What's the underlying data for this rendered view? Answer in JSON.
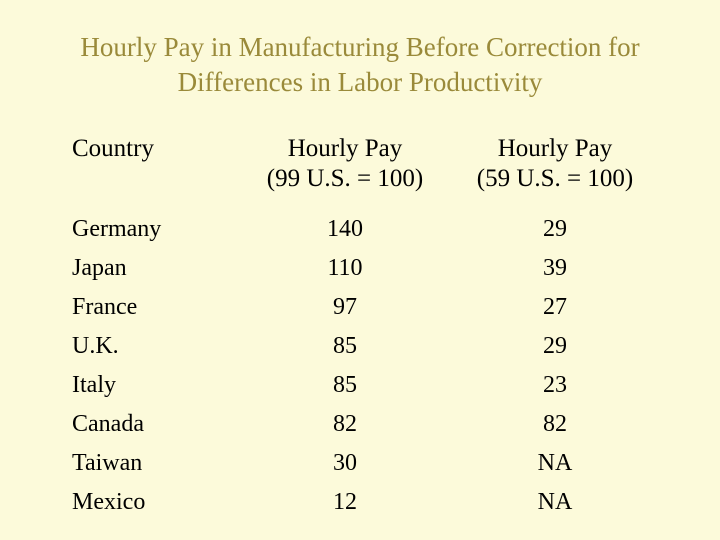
{
  "slide": {
    "title": "Hourly Pay in Manufacturing Before Correction for Differences in Labor Productivity",
    "background_color": "#fcfada",
    "title_color": "#9a8a3a",
    "text_color": "#000000",
    "title_fontsize": 27,
    "body_fontsize": 25,
    "font_family": "Times New Roman"
  },
  "table": {
    "type": "table",
    "columns": [
      {
        "key": "country",
        "header_line1": "Country",
        "header_line2": "",
        "align": "left",
        "width_pct": 30
      },
      {
        "key": "pay99",
        "header_line1": "Hourly Pay",
        "header_line2": "(99 U.S. = 100)",
        "align": "center",
        "width_pct": 35
      },
      {
        "key": "pay59",
        "header_line1": "Hourly Pay",
        "header_line2": "(59 U.S. = 100)",
        "align": "center",
        "width_pct": 35
      }
    ],
    "rows": [
      {
        "country": "Germany",
        "pay99": "140",
        "pay59": "29"
      },
      {
        "country": "Japan",
        "pay99": "110",
        "pay59": "39"
      },
      {
        "country": "France",
        "pay99": "97",
        "pay59": "27"
      },
      {
        "country": "U.K.",
        "pay99": "85",
        "pay59": "29"
      },
      {
        "country": "Italy",
        "pay99": "85",
        "pay59": "23"
      },
      {
        "country": "Canada",
        "pay99": "82",
        "pay59": "82"
      },
      {
        "country": "Taiwan",
        "pay99": "30",
        "pay59": "NA"
      },
      {
        "country": "Mexico",
        "pay99": "12",
        "pay59": "NA"
      }
    ]
  }
}
